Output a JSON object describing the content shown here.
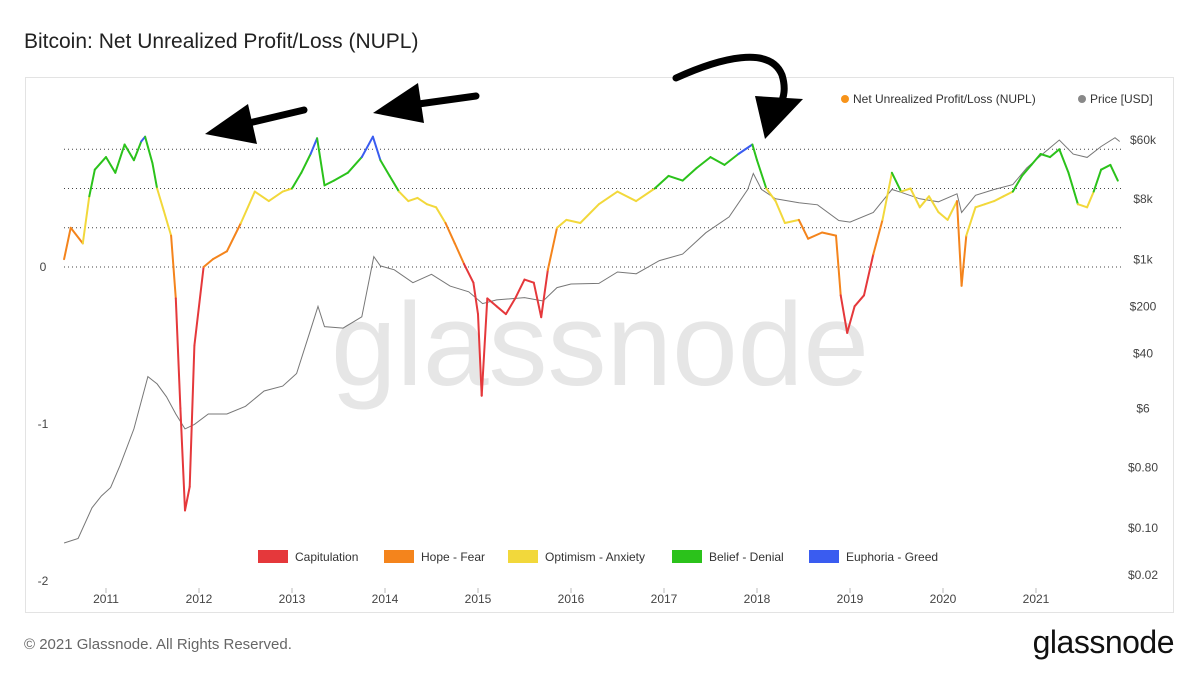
{
  "title": "Bitcoin: Net Unrealized Profit/Loss (NUPL)",
  "footer": {
    "copyright": "© 2021 Glassnode. All Rights Reserved.",
    "brand": "glassnode"
  },
  "watermark": "glassnode",
  "colors": {
    "nupl_legend": "#f7931a",
    "price_legend": "#888888",
    "price_line": "#777777",
    "grid": "#444444"
  },
  "chart_data": {
    "type": "line",
    "title": "Bitcoin: Net Unrealized Profit/Loss (NUPL)",
    "x_axis": {
      "ticks": [
        "2011",
        "2012",
        "2013",
        "2014",
        "2015",
        "2016",
        "2017",
        "2018",
        "2019",
        "2020",
        "2021"
      ]
    },
    "y_axis_left": {
      "label": "",
      "ticks": [
        "0",
        "-1",
        "-2"
      ],
      "range": [
        -2,
        1
      ]
    },
    "y_axis_right": {
      "label": "",
      "scale": "log",
      "ticks": [
        "$60k",
        "$8k",
        "$1k",
        "$200",
        "$40",
        "$6",
        "$0.80",
        "$0.10",
        "$0.02"
      ],
      "range": [
        0.02,
        60000
      ]
    },
    "grid": "dotted horizontal at NUPL 0, 0.25, 0.5, 0.75",
    "legend_top": [
      {
        "name": "Net Unrealized Profit/Loss (NUPL)",
        "color": "#f7931a"
      },
      {
        "name": "Price [USD]",
        "color": "#888888"
      }
    ],
    "zones": [
      {
        "name": "Capitulation",
        "color": "#e5383b",
        "range": [
          -2,
          0
        ]
      },
      {
        "name": "Hope - Fear",
        "color": "#f4841c",
        "range": [
          0,
          0.25
        ]
      },
      {
        "name": "Optimism - Anxiety",
        "color": "#f2d83b",
        "range": [
          0.25,
          0.5
        ]
      },
      {
        "name": "Belief - Denial",
        "color": "#2bc21b",
        "range": [
          0.5,
          0.75
        ]
      },
      {
        "name": "Euphoria - Greed",
        "color": "#3a5cf0",
        "range": [
          0.75,
          1
        ]
      }
    ],
    "series": [
      {
        "name": "Net Unrealized Profit/Loss (NUPL)",
        "points": [
          [
            2010.55,
            0.05
          ],
          [
            2010.62,
            0.25
          ],
          [
            2010.75,
            0.15
          ],
          [
            2010.82,
            0.45
          ],
          [
            2010.88,
            0.62
          ],
          [
            2011.0,
            0.7
          ],
          [
            2011.1,
            0.6
          ],
          [
            2011.2,
            0.78
          ],
          [
            2011.3,
            0.68
          ],
          [
            2011.38,
            0.8
          ],
          [
            2011.42,
            0.83
          ],
          [
            2011.5,
            0.66
          ],
          [
            2011.55,
            0.5
          ],
          [
            2011.62,
            0.36
          ],
          [
            2011.7,
            0.2
          ],
          [
            2011.75,
            -0.2
          ],
          [
            2011.8,
            -0.9
          ],
          [
            2011.85,
            -1.55
          ],
          [
            2011.9,
            -1.4
          ],
          [
            2011.95,
            -0.5
          ],
          [
            2012.05,
            0.0
          ],
          [
            2012.15,
            0.05
          ],
          [
            2012.3,
            0.1
          ],
          [
            2012.45,
            0.28
          ],
          [
            2012.6,
            0.48
          ],
          [
            2012.75,
            0.42
          ],
          [
            2012.9,
            0.48
          ],
          [
            2013.0,
            0.5
          ],
          [
            2013.1,
            0.6
          ],
          [
            2013.2,
            0.72
          ],
          [
            2013.27,
            0.82
          ],
          [
            2013.35,
            0.52
          ],
          [
            2013.45,
            0.55
          ],
          [
            2013.6,
            0.6
          ],
          [
            2013.75,
            0.7
          ],
          [
            2013.87,
            0.83
          ],
          [
            2013.95,
            0.68
          ],
          [
            2014.05,
            0.58
          ],
          [
            2014.15,
            0.48
          ],
          [
            2014.25,
            0.42
          ],
          [
            2014.35,
            0.44
          ],
          [
            2014.45,
            0.4
          ],
          [
            2014.55,
            0.38
          ],
          [
            2014.65,
            0.28
          ],
          [
            2014.75,
            0.15
          ],
          [
            2014.85,
            0.02
          ],
          [
            2014.95,
            -0.1
          ],
          [
            2015.0,
            -0.3
          ],
          [
            2015.04,
            -0.82
          ],
          [
            2015.1,
            -0.2
          ],
          [
            2015.2,
            -0.25
          ],
          [
            2015.3,
            -0.3
          ],
          [
            2015.4,
            -0.2
          ],
          [
            2015.5,
            -0.08
          ],
          [
            2015.6,
            -0.1
          ],
          [
            2015.68,
            -0.32
          ],
          [
            2015.75,
            -0.02
          ],
          [
            2015.85,
            0.25
          ],
          [
            2015.95,
            0.3
          ],
          [
            2016.1,
            0.28
          ],
          [
            2016.3,
            0.4
          ],
          [
            2016.5,
            0.48
          ],
          [
            2016.7,
            0.42
          ],
          [
            2016.9,
            0.5
          ],
          [
            2017.05,
            0.58
          ],
          [
            2017.2,
            0.55
          ],
          [
            2017.35,
            0.63
          ],
          [
            2017.5,
            0.7
          ],
          [
            2017.65,
            0.65
          ],
          [
            2017.8,
            0.72
          ],
          [
            2017.95,
            0.78
          ],
          [
            2018.0,
            0.68
          ],
          [
            2018.1,
            0.5
          ],
          [
            2018.2,
            0.42
          ],
          [
            2018.3,
            0.28
          ],
          [
            2018.45,
            0.3
          ],
          [
            2018.55,
            0.18
          ],
          [
            2018.7,
            0.22
          ],
          [
            2018.85,
            0.2
          ],
          [
            2018.9,
            -0.18
          ],
          [
            2018.97,
            -0.42
          ],
          [
            2019.05,
            -0.25
          ],
          [
            2019.15,
            -0.18
          ],
          [
            2019.25,
            0.08
          ],
          [
            2019.35,
            0.3
          ],
          [
            2019.45,
            0.6
          ],
          [
            2019.55,
            0.48
          ],
          [
            2019.65,
            0.5
          ],
          [
            2019.75,
            0.38
          ],
          [
            2019.85,
            0.45
          ],
          [
            2019.95,
            0.35
          ],
          [
            2020.05,
            0.3
          ],
          [
            2020.15,
            0.42
          ],
          [
            2020.2,
            -0.12
          ],
          [
            2020.25,
            0.2
          ],
          [
            2020.35,
            0.38
          ],
          [
            2020.45,
            0.4
          ],
          [
            2020.55,
            0.42
          ],
          [
            2020.65,
            0.45
          ],
          [
            2020.75,
            0.48
          ],
          [
            2020.85,
            0.58
          ],
          [
            2020.95,
            0.65
          ],
          [
            2021.05,
            0.72
          ],
          [
            2021.15,
            0.7
          ],
          [
            2021.25,
            0.75
          ],
          [
            2021.35,
            0.6
          ],
          [
            2021.45,
            0.4
          ],
          [
            2021.55,
            0.38
          ],
          [
            2021.62,
            0.48
          ],
          [
            2021.7,
            0.62
          ],
          [
            2021.8,
            0.65
          ],
          [
            2021.88,
            0.55
          ]
        ]
      },
      {
        "name": "Price [USD]",
        "points": [
          [
            2010.55,
            0.06
          ],
          [
            2010.7,
            0.07
          ],
          [
            2010.85,
            0.2
          ],
          [
            2010.95,
            0.3
          ],
          [
            2011.05,
            0.4
          ],
          [
            2011.15,
            0.85
          ],
          [
            2011.3,
            3
          ],
          [
            2011.45,
            18
          ],
          [
            2011.55,
            14
          ],
          [
            2011.65,
            9
          ],
          [
            2011.75,
            5
          ],
          [
            2011.85,
            3
          ],
          [
            2011.95,
            3.5
          ],
          [
            2012.1,
            5
          ],
          [
            2012.3,
            5
          ],
          [
            2012.5,
            6.5
          ],
          [
            2012.7,
            11
          ],
          [
            2012.9,
            13
          ],
          [
            2013.05,
            20
          ],
          [
            2013.2,
            90
          ],
          [
            2013.28,
            200
          ],
          [
            2013.35,
            100
          ],
          [
            2013.55,
            95
          ],
          [
            2013.75,
            140
          ],
          [
            2013.88,
            1100
          ],
          [
            2013.95,
            800
          ],
          [
            2014.1,
            700
          ],
          [
            2014.3,
            450
          ],
          [
            2014.5,
            600
          ],
          [
            2014.7,
            400
          ],
          [
            2014.9,
            330
          ],
          [
            2015.05,
            220
          ],
          [
            2015.2,
            250
          ],
          [
            2015.5,
            270
          ],
          [
            2015.7,
            240
          ],
          [
            2015.85,
            380
          ],
          [
            2016.0,
            430
          ],
          [
            2016.3,
            440
          ],
          [
            2016.5,
            650
          ],
          [
            2016.7,
            610
          ],
          [
            2016.95,
            960
          ],
          [
            2017.2,
            1200
          ],
          [
            2017.45,
            2500
          ],
          [
            2017.7,
            4300
          ],
          [
            2017.9,
            11000
          ],
          [
            2017.96,
            19000
          ],
          [
            2018.05,
            11000
          ],
          [
            2018.2,
            8000
          ],
          [
            2018.45,
            7000
          ],
          [
            2018.65,
            6500
          ],
          [
            2018.88,
            3800
          ],
          [
            2019.0,
            3600
          ],
          [
            2019.25,
            5000
          ],
          [
            2019.45,
            11000
          ],
          [
            2019.55,
            10000
          ],
          [
            2019.75,
            8000
          ],
          [
            2019.95,
            7200
          ],
          [
            2020.15,
            9500
          ],
          [
            2020.2,
            5000
          ],
          [
            2020.35,
            9000
          ],
          [
            2020.55,
            11000
          ],
          [
            2020.75,
            13000
          ],
          [
            2020.9,
            23000
          ],
          [
            2021.05,
            35000
          ],
          [
            2021.25,
            60000
          ],
          [
            2021.4,
            37000
          ],
          [
            2021.55,
            33000
          ],
          [
            2021.7,
            48000
          ],
          [
            2021.85,
            65000
          ],
          [
            2021.9,
            57000
          ]
        ]
      }
    ],
    "annotations": [
      {
        "type": "arrow",
        "points_to": [
          2011.45,
          0.83
        ]
      },
      {
        "type": "arrow",
        "points_to": [
          2013.87,
          0.83
        ]
      },
      {
        "type": "arrow",
        "points_to": [
          2017.95,
          0.78
        ]
      }
    ]
  }
}
